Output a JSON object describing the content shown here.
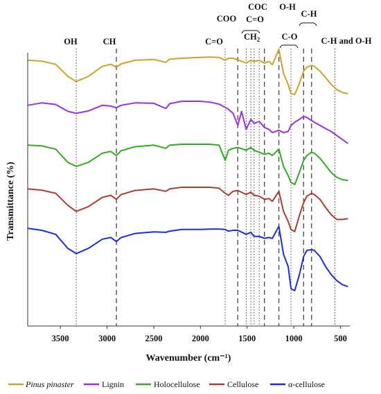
{
  "chart_data": {
    "type": "line",
    "title": "",
    "xlabel": "Wavenumber (cm⁻¹)",
    "ylabel": "Transmittance (%)",
    "xlim": [
      3850,
      400
    ],
    "x_reversed": true,
    "xticks": [
      3500,
      3000,
      2500,
      2000,
      1500,
      1000,
      500
    ],
    "xtick_labels": [
      "3500",
      "3000",
      "2500",
      "2000",
      "1500",
      "1000",
      "500"
    ],
    "y_units": "arbitrary (offset spectra, no y tick labels)",
    "grid": false,
    "legend_position": "bottom",
    "series": [
      {
        "name": "Pinus pinaster",
        "color": "#D4A027",
        "offset": 4,
        "x": [
          3850,
          3700,
          3550,
          3420,
          3330,
          3200,
          3050,
          2960,
          2900,
          2850,
          2700,
          2500,
          2370,
          2330,
          2200,
          2000,
          1900,
          1800,
          1735,
          1700,
          1650,
          1600,
          1510,
          1460,
          1425,
          1370,
          1315,
          1265,
          1230,
          1160,
          1110,
          1060,
          1030,
          990,
          940,
          895,
          860,
          810,
          780,
          720,
          660,
          600,
          540,
          480,
          420
        ],
        "y": [
          0.95,
          0.93,
          0.85,
          0.55,
          0.42,
          0.55,
          0.8,
          0.85,
          0.78,
          0.86,
          0.95,
          0.97,
          0.9,
          0.98,
          1.0,
          1.02,
          1.03,
          1.02,
          0.95,
          1.0,
          1.0,
          0.96,
          0.88,
          0.95,
          0.92,
          0.95,
          0.88,
          0.92,
          0.84,
          1.22,
          0.62,
          0.35,
          0.12,
          0.1,
          0.38,
          0.68,
          0.78,
          0.82,
          0.8,
          0.68,
          0.52,
          0.35,
          0.22,
          0.15,
          0.12
        ]
      },
      {
        "name": "Lignin",
        "color": "#9B30E8",
        "offset": 3,
        "x": [
          3850,
          3700,
          3550,
          3420,
          3330,
          3200,
          3050,
          2960,
          2900,
          2850,
          2700,
          2500,
          2370,
          2330,
          2200,
          2000,
          1900,
          1800,
          1735,
          1700,
          1650,
          1600,
          1560,
          1510,
          1460,
          1425,
          1370,
          1315,
          1265,
          1230,
          1160,
          1110,
          1060,
          1030,
          990,
          940,
          895,
          860,
          810,
          780,
          720,
          660,
          600,
          540,
          480,
          420
        ],
        "y": [
          0.9,
          0.96,
          0.92,
          0.75,
          0.7,
          0.76,
          0.9,
          0.88,
          0.84,
          0.9,
          0.96,
          0.95,
          0.82,
          0.94,
          1.0,
          1.0,
          0.98,
          0.93,
          0.85,
          0.8,
          0.7,
          0.4,
          0.75,
          0.3,
          0.55,
          0.45,
          0.5,
          0.35,
          0.3,
          0.22,
          0.28,
          0.22,
          0.25,
          0.4,
          0.48,
          0.55,
          0.62,
          0.6,
          0.52,
          0.48,
          0.4,
          0.32,
          0.25,
          0.15,
          0.05,
          -0.05
        ]
      },
      {
        "name": "Holocellulose",
        "color": "#2EAD1E",
        "offset": 2,
        "x": [
          3850,
          3700,
          3550,
          3420,
          3330,
          3200,
          3050,
          2960,
          2900,
          2850,
          2700,
          2500,
          2370,
          2330,
          2200,
          2000,
          1900,
          1800,
          1735,
          1700,
          1650,
          1600,
          1510,
          1460,
          1425,
          1370,
          1315,
          1265,
          1230,
          1160,
          1110,
          1060,
          1030,
          990,
          940,
          895,
          860,
          810,
          780,
          720,
          660,
          600,
          540,
          480,
          420
        ],
        "y": [
          0.98,
          0.96,
          0.88,
          0.55,
          0.45,
          0.55,
          0.78,
          0.82,
          0.72,
          0.84,
          0.94,
          0.98,
          0.9,
          0.98,
          1.0,
          1.0,
          1.0,
          0.98,
          0.6,
          0.85,
          0.9,
          0.92,
          0.85,
          0.92,
          0.85,
          0.8,
          0.75,
          0.78,
          0.72,
          0.88,
          0.45,
          0.22,
          0.05,
          0.0,
          0.3,
          0.6,
          0.72,
          0.8,
          0.78,
          0.65,
          0.48,
          0.3,
          0.18,
          0.12,
          0.1
        ]
      },
      {
        "name": "Cellulose",
        "color": "#B23A2A",
        "offset": 1,
        "x": [
          3850,
          3700,
          3550,
          3420,
          3330,
          3200,
          3050,
          2960,
          2900,
          2850,
          2700,
          2500,
          2370,
          2330,
          2200,
          2000,
          1900,
          1800,
          1735,
          1700,
          1650,
          1600,
          1510,
          1460,
          1425,
          1370,
          1315,
          1265,
          1230,
          1160,
          1110,
          1060,
          1030,
          990,
          940,
          895,
          860,
          810,
          780,
          720,
          660,
          600,
          540,
          480,
          420
        ],
        "y": [
          0.96,
          0.93,
          0.85,
          0.55,
          0.4,
          0.52,
          0.75,
          0.8,
          0.7,
          0.82,
          0.92,
          0.96,
          0.9,
          0.96,
          1.0,
          1.0,
          1.0,
          0.98,
          0.85,
          0.8,
          0.9,
          0.92,
          0.82,
          0.88,
          0.8,
          0.78,
          0.7,
          0.72,
          0.65,
          0.9,
          0.4,
          0.15,
          -0.05,
          -0.1,
          0.3,
          0.62,
          0.78,
          0.85,
          0.82,
          0.7,
          0.5,
          0.32,
          0.2,
          0.2,
          0.22
        ]
      },
      {
        "name": "α-cellulose",
        "color": "#1A2BE8",
        "offset": 0,
        "x": [
          3850,
          3700,
          3550,
          3420,
          3330,
          3200,
          3050,
          2960,
          2900,
          2850,
          2700,
          2500,
          2370,
          2330,
          2200,
          2000,
          1900,
          1800,
          1735,
          1700,
          1650,
          1600,
          1510,
          1460,
          1425,
          1370,
          1315,
          1265,
          1230,
          1160,
          1110,
          1060,
          1030,
          990,
          940,
          895,
          860,
          810,
          780,
          720,
          660,
          600,
          540,
          480,
          420
        ],
        "y": [
          1.05,
          1.0,
          0.9,
          0.55,
          0.42,
          0.55,
          0.78,
          0.82,
          0.72,
          0.82,
          0.92,
          0.96,
          0.95,
          0.98,
          1.02,
          1.02,
          1.03,
          1.03,
          1.02,
          0.98,
          1.0,
          1.0,
          0.9,
          0.95,
          0.85,
          0.85,
          0.8,
          0.82,
          0.8,
          1.1,
          0.4,
          0.1,
          -0.45,
          -0.5,
          -0.1,
          0.35,
          0.5,
          0.52,
          0.5,
          0.35,
          0.1,
          -0.1,
          -0.25,
          -0.35,
          -0.4
        ]
      }
    ],
    "reference_lines": [
      {
        "x": 3330,
        "style": "dotted",
        "label": "OH"
      },
      {
        "x": 2900,
        "style": "dashed",
        "label": "CH"
      },
      {
        "x": 1735,
        "style": "dotted",
        "label": "C=O"
      },
      {
        "x": 1600,
        "style": "dashed",
        "label": "COO"
      },
      {
        "x": 1510,
        "style": "dotted"
      },
      {
        "x": 1460,
        "style": "dotted"
      },
      {
        "x": 1425,
        "style": "dotted"
      },
      {
        "x": 1370,
        "style": "dotted"
      },
      {
        "x": 1315,
        "style": "dashed"
      },
      {
        "x": 1160,
        "style": "dashed",
        "label": "O-H"
      },
      {
        "x": 1030,
        "style": "dotted",
        "label": "C-O"
      },
      {
        "x": 895,
        "style": "dashed",
        "label": "C-H"
      },
      {
        "x": 810,
        "style": "dashed"
      },
      {
        "x": 560,
        "style": "dotted",
        "label": "C-H and O-H"
      }
    ],
    "annotations": {
      "oh": "OH",
      "ch": "CH",
      "co_1735": "C=O",
      "coo": "COO",
      "coc": "COC",
      "co_1650": "C=O",
      "ch2_pre": "CH",
      "ch2_sub": "2",
      "oh_1160": "O-H",
      "cmo": "C-O",
      "c_h": "C-H",
      "ch_oh": "C-H and O-H"
    }
  },
  "legend": {
    "items": [
      {
        "label": "Pinus pinaster",
        "italic": true,
        "color": "#D4A027"
      },
      {
        "label": "Lignin",
        "italic": false,
        "color": "#9B30E8"
      },
      {
        "label": "Holocellulose",
        "italic": false,
        "color": "#2EAD1E"
      },
      {
        "label": "Cellulose",
        "italic": false,
        "color": "#B23A2A"
      },
      {
        "label": "α-cellulose",
        "italic": false,
        "color": "#1A2BE8"
      }
    ]
  }
}
